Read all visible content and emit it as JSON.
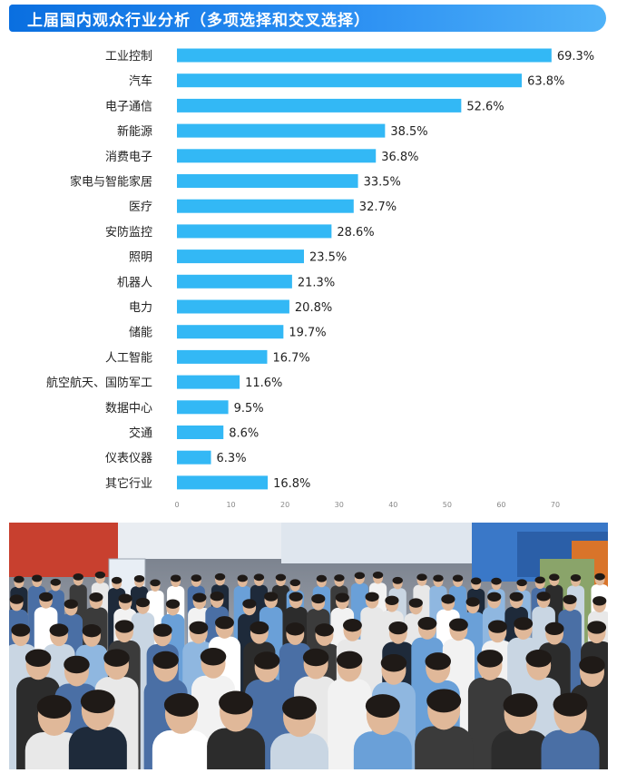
{
  "banner": {
    "title": "上届国内观众行业分析（多项选择和交叉选择）"
  },
  "colors": {
    "bar": "#33b8f5",
    "banner": "#1a7ce8"
  },
  "chart_data": {
    "type": "bar",
    "orientation": "horizontal",
    "title": "上届国内观众行业分析（多项选择和交叉选择）",
    "categories": [
      "工业控制",
      "汽车",
      "电子通信",
      "新能源",
      "消费电子",
      "家电与智能家居",
      "医疗",
      "安防监控",
      "照明",
      "机器人",
      "电力",
      "储能",
      "人工智能",
      "航空航天、国防军工",
      "数据中心",
      "交通",
      "仪表仪器",
      "其它行业"
    ],
    "values": [
      69.3,
      63.8,
      52.6,
      38.5,
      36.8,
      33.5,
      32.7,
      28.6,
      23.5,
      21.3,
      20.8,
      19.7,
      16.7,
      11.6,
      9.5,
      8.6,
      6.3,
      16.8
    ],
    "value_labels": [
      "69.3%",
      "63.8%",
      "52.6%",
      "38.5%",
      "36.8%",
      "33.5%",
      "32.7%",
      "28.6%",
      "23.5%",
      "21.3%",
      "20.8%",
      "19.7%",
      "16.7%",
      "11.6%",
      "9.5%",
      "8.6%",
      "6.3%",
      "16.8%"
    ],
    "xticks": [
      "0",
      "10",
      "20",
      "30",
      "40",
      "50",
      "60",
      "70"
    ],
    "xlim": [
      0,
      70
    ],
    "grid": false
  }
}
